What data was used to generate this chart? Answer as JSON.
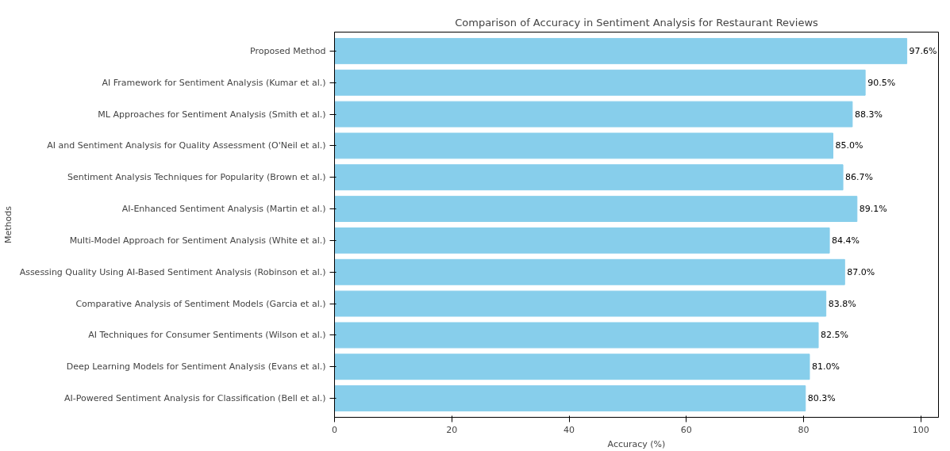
{
  "chart_data": {
    "type": "bar",
    "orientation": "horizontal",
    "title": "Comparison of Accuracy in Sentiment Analysis for Restaurant Reviews",
    "xlabel": "Accuracy (%)",
    "ylabel": "Methods",
    "categories": [
      "Proposed Method",
      "AI Framework for Sentiment Analysis (Kumar et al.)",
      "ML Approaches for Sentiment Analysis (Smith et al.)",
      "AI and Sentiment Analysis for Quality Assessment (O'Neil et al.)",
      "Sentiment Analysis Techniques for Popularity (Brown et al.)",
      "AI-Enhanced Sentiment Analysis (Martin et al.)",
      "Multi-Model Approach for Sentiment Analysis (White et al.)",
      "Assessing Quality Using AI-Based Sentiment Analysis (Robinson et al.)",
      "Comparative Analysis of Sentiment Models (Garcia et al.)",
      "AI Techniques for Consumer Sentiments (Wilson et al.)",
      "Deep Learning Models for Sentiment Analysis (Evans et al.)",
      "AI-Powered Sentiment Analysis for Classification (Bell et al.)"
    ],
    "values": [
      97.6,
      90.5,
      88.3,
      85.0,
      86.7,
      89.1,
      84.4,
      87.0,
      83.8,
      82.5,
      81.0,
      80.3
    ],
    "value_labels": [
      "97.6%",
      "90.5%",
      "88.3%",
      "85.0%",
      "86.7%",
      "89.1%",
      "84.4%",
      "87.0%",
      "83.8%",
      "82.5%",
      "81.0%",
      "80.3%"
    ],
    "color": "#87ceeb",
    "xlim": [
      0,
      103
    ],
    "xticks": [
      0,
      20,
      40,
      60,
      80,
      100
    ],
    "grid": false
  }
}
